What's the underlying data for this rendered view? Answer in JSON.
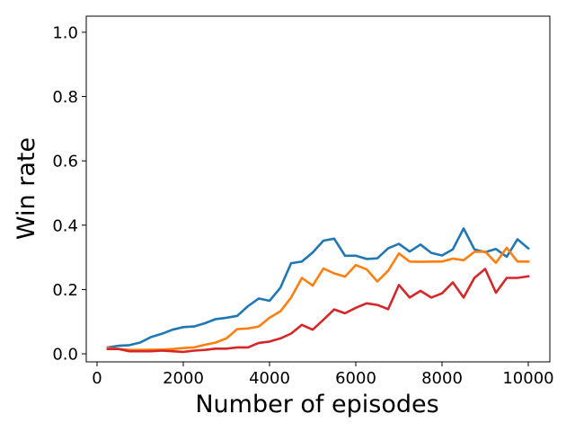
{
  "chart_data": {
    "type": "line",
    "title": "",
    "xlabel": "Number of episodes",
    "ylabel": "Win rate",
    "xlim": [
      -250,
      10500
    ],
    "ylim": [
      -0.025,
      1.05
    ],
    "xticks": [
      0,
      2000,
      4000,
      6000,
      8000,
      10000
    ],
    "xtick_labels": [
      "0",
      "2000",
      "4000",
      "6000",
      "8000",
      "10000"
    ],
    "yticks": [
      0.0,
      0.2,
      0.4,
      0.6,
      0.8,
      1.0
    ],
    "ytick_labels": [
      "0.0",
      "0.2",
      "0.4",
      "0.6",
      "0.8",
      "1.0"
    ],
    "grid": false,
    "legend": "none",
    "x": [
      250,
      500,
      750,
      1000,
      1250,
      1500,
      1750,
      2000,
      2250,
      2500,
      2750,
      3000,
      3250,
      3500,
      3750,
      4000,
      4250,
      4500,
      4750,
      5000,
      5250,
      5500,
      5750,
      6000,
      6250,
      6500,
      6750,
      7000,
      7250,
      7500,
      7750,
      8000,
      8250,
      8500,
      8750,
      9000,
      9250,
      9500,
      9750,
      10000
    ],
    "series": [
      {
        "color": "#1f77b4",
        "values": [
          0.02,
          0.025,
          0.027,
          0.035,
          0.052,
          0.062,
          0.075,
          0.083,
          0.085,
          0.095,
          0.108,
          0.112,
          0.118,
          0.148,
          0.172,
          0.165,
          0.205,
          0.282,
          0.287,
          0.315,
          0.352,
          0.358,
          0.305,
          0.305,
          0.295,
          0.297,
          0.328,
          0.342,
          0.318,
          0.34,
          0.314,
          0.306,
          0.325,
          0.39,
          0.325,
          0.316,
          0.326,
          0.302,
          0.356,
          0.328
        ]
      },
      {
        "color": "#ff7f0e",
        "values": [
          0.018,
          0.015,
          0.012,
          0.012,
          0.013,
          0.013,
          0.015,
          0.018,
          0.02,
          0.028,
          0.035,
          0.048,
          0.077,
          0.079,
          0.085,
          0.112,
          0.132,
          0.175,
          0.236,
          0.212,
          0.265,
          0.25,
          0.24,
          0.276,
          0.263,
          0.225,
          0.258,
          0.312,
          0.287,
          0.286,
          0.287,
          0.287,
          0.296,
          0.291,
          0.317,
          0.318,
          0.283,
          0.33,
          0.287,
          0.287
        ]
      },
      {
        "color": "#d62728",
        "values": [
          0.015,
          0.015,
          0.008,
          0.008,
          0.008,
          0.01,
          0.008,
          0.006,
          0.01,
          0.012,
          0.016,
          0.016,
          0.02,
          0.02,
          0.034,
          0.038,
          0.048,
          0.063,
          0.09,
          0.075,
          0.106,
          0.138,
          0.126,
          0.143,
          0.157,
          0.152,
          0.139,
          0.214,
          0.175,
          0.196,
          0.175,
          0.188,
          0.222,
          0.175,
          0.236,
          0.264,
          0.19,
          0.236,
          0.236,
          0.241
        ]
      }
    ]
  }
}
